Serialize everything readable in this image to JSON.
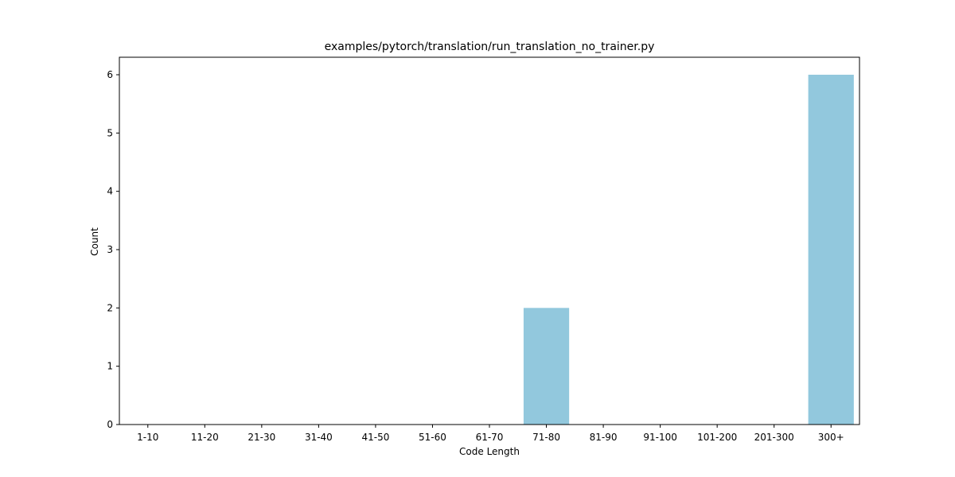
{
  "chart_data": {
    "type": "bar",
    "title": "examples/pytorch/translation/run_translation_no_trainer.py",
    "xlabel": "Code Length",
    "ylabel": "Count",
    "categories": [
      "1-10",
      "11-20",
      "21-30",
      "31-40",
      "41-50",
      "51-60",
      "61-70",
      "71-80",
      "81-90",
      "91-100",
      "101-200",
      "201-300",
      "300+"
    ],
    "values": [
      0,
      0,
      0,
      0,
      0,
      0,
      0,
      2,
      0,
      0,
      0,
      0,
      6
    ],
    "ylim": [
      0,
      6.3
    ],
    "yticks": [
      0,
      1,
      2,
      3,
      4,
      5,
      6
    ],
    "bar_color": "#92c8dd",
    "grid": false,
    "legend": "none"
  }
}
